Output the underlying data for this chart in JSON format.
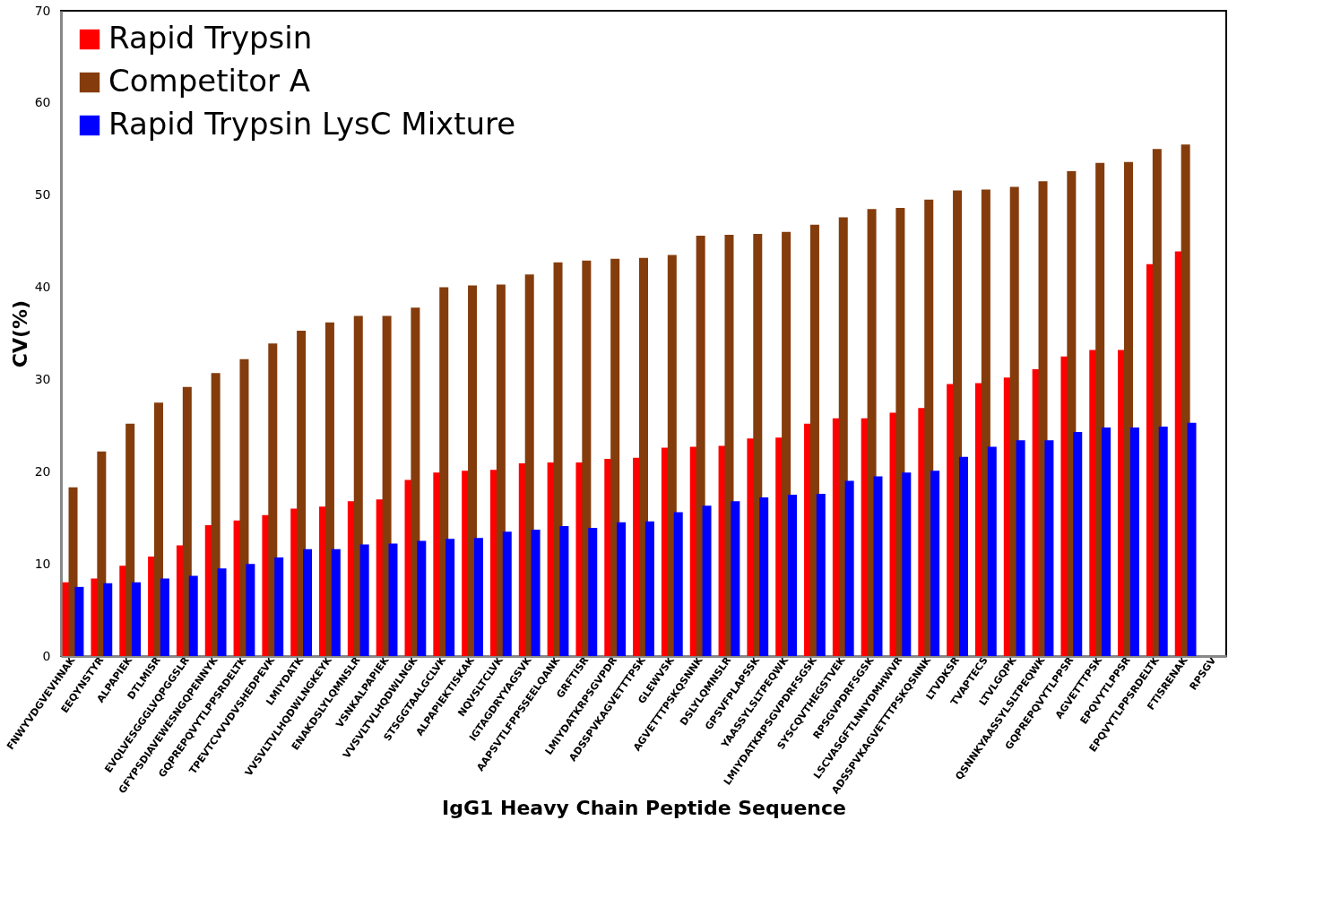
{
  "chart_data": {
    "type": "bar",
    "xlabel": "IgG1 Heavy Chain Peptide Sequence",
    "ylabel": "CV(%)",
    "categories": [
      "FNWYVDGVEVHNAK",
      "EEQYNSTYR",
      "ALPAPIEK",
      "DTLMISR",
      "EVQLVESGGGLVQPGGSLR",
      "GFYPSDIAVEWESNGQPENNYK",
      "GQPREPQVYTLPPSRDELTK",
      "TPEVTCVVVDVSHEDPEVK",
      "LMIYDATK",
      "VVSVLTVLHQDWLNGKEYK",
      "ENAKDSLYLQMNSLR",
      "VSNKALPAPIEK",
      "VVSVLTVLHQDWLNGK",
      "STSGGTAALGCLVK",
      "ALPAPIEKTISKAK",
      "NQVSLTCLVK",
      "IGTAGDRYYAGSVK",
      "AAPSVTLFPPSSEELQANK",
      "GRFTISR",
      "LMIYDATKRPSGVPDR",
      "ADSSPVKAGVETTTPSK",
      "GLEWVSK",
      "AGVETTTPSKQSNNK",
      "DSLYLQMNSLR",
      "GPSVFPLAPSSK",
      "YAASSYLSLTPEQWK",
      "LMIYDATKRPSGVPDRFSGSK",
      "SYSCQVTHEGSTVEK",
      "RPSGVPDRFSGSK",
      "LSCVASGFTLNNYDMHWVR",
      "ADSSPVKAGVETTTPSKQSNNK",
      "LTVDKSR",
      "TVAPTECS",
      "LTVLGQPK",
      "QSNNKYAASSYLSLTPEQWK",
      "GQPREPQVYTLPPSR",
      "AGVETTTPSK",
      "EPQVYTLPPSR",
      "EPQVYTLPPSRDELTK",
      "FTISRENAK",
      "RPSGV"
    ],
    "series": [
      {
        "name": "Rapid Trypsin",
        "color": "#ff0000",
        "values": [
          8.0,
          8.4,
          9.8,
          10.8,
          12.0,
          14.2,
          14.7,
          15.3,
          16.0,
          16.2,
          16.8,
          17.0,
          19.1,
          19.9,
          20.1,
          20.2,
          20.9,
          21.0,
          21.0,
          21.4,
          21.5,
          22.6,
          22.7,
          22.8,
          23.6,
          23.7,
          25.2,
          25.8,
          25.8,
          26.4,
          26.9,
          29.5,
          29.6,
          30.2,
          31.1,
          32.5,
          33.2,
          33.2,
          42.5,
          43.9,
          null
        ]
      },
      {
        "name": "Competitor A",
        "color": "#843c0c",
        "values": [
          18.3,
          22.2,
          25.2,
          27.5,
          29.2,
          30.7,
          32.2,
          33.9,
          35.3,
          36.2,
          36.9,
          36.9,
          37.8,
          40.0,
          40.2,
          40.3,
          41.4,
          42.7,
          42.9,
          43.1,
          43.2,
          43.5,
          45.6,
          45.7,
          45.8,
          46.0,
          46.8,
          47.6,
          48.5,
          48.6,
          49.5,
          50.5,
          50.6,
          50.9,
          51.5,
          52.6,
          53.5,
          53.6,
          55.0,
          55.5,
          null
        ]
      },
      {
        "name": "Rapid Trypsin LysC Mixture",
        "color": "#0000ff",
        "values": [
          7.5,
          7.9,
          8.0,
          8.4,
          8.7,
          9.5,
          10.0,
          10.7,
          11.6,
          11.6,
          12.1,
          12.2,
          12.5,
          12.7,
          12.8,
          13.5,
          13.7,
          14.1,
          13.9,
          14.5,
          14.6,
          15.6,
          16.3,
          16.8,
          17.2,
          17.5,
          17.6,
          19.0,
          19.5,
          19.9,
          20.1,
          21.6,
          22.7,
          23.4,
          23.4,
          24.3,
          24.8,
          24.8,
          24.9,
          25.3,
          null
        ]
      }
    ],
    "ylim": [
      0,
      70
    ],
    "yticks": [
      0,
      10,
      20,
      30,
      40,
      50,
      60,
      70
    ],
    "grid": false,
    "legend": "top left"
  }
}
